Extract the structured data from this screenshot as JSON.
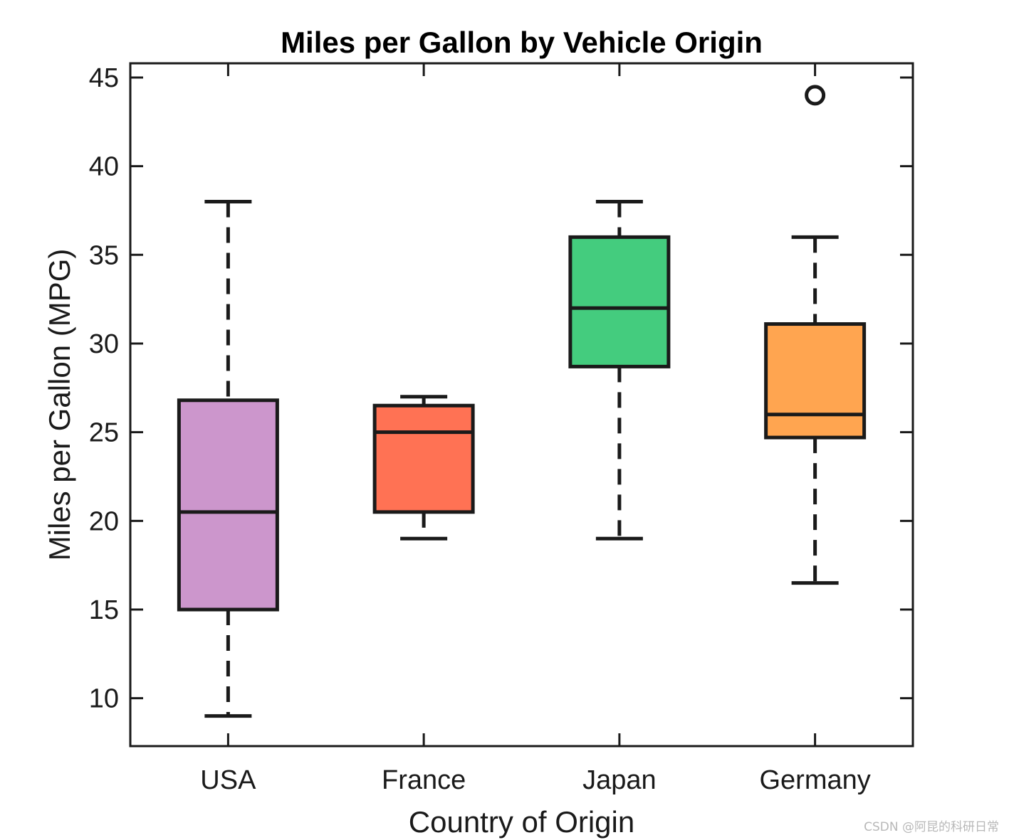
{
  "chart_data": {
    "type": "box",
    "title": "Miles per Gallon by Vehicle Origin",
    "xlabel": "Country of Origin",
    "ylabel": "Miles per Gallon (MPG)",
    "ylim": [
      7.3,
      45.8
    ],
    "yticks": [
      10,
      15,
      20,
      25,
      30,
      35,
      40,
      45
    ],
    "categories": [
      "USA",
      "France",
      "Japan",
      "Germany"
    ],
    "grid": false,
    "box": true,
    "series": [
      {
        "category": "USA",
        "color": "#CC96CC",
        "whisker_low": 9,
        "q1": 15,
        "median": 20.5,
        "q3": 26.8,
        "whisker_high": 38,
        "outliers": []
      },
      {
        "category": "France",
        "color": "#FF7254",
        "whisker_low": 19,
        "q1": 20.5,
        "median": 25,
        "q3": 26.5,
        "whisker_high": 27,
        "outliers": []
      },
      {
        "category": "Japan",
        "color": "#44CC7E",
        "whisker_low": 19,
        "q1": 28.7,
        "median": 32,
        "q3": 36,
        "whisker_high": 38,
        "outliers": []
      },
      {
        "category": "Germany",
        "color": "#FFA550",
        "whisker_low": 16.5,
        "q1": 24.7,
        "median": 26,
        "q3": 31.1,
        "whisker_high": 36,
        "outliers": [
          44
        ]
      }
    ]
  },
  "watermark": "CSDN @阿昆的科研日常"
}
